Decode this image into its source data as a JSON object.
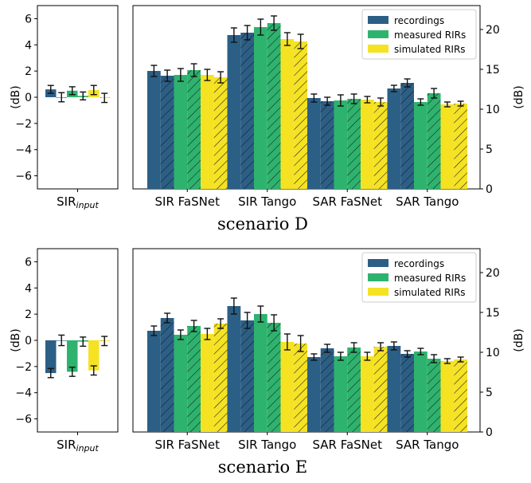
{
  "colors": {
    "recordings": "#2c5f86",
    "measured_rirs": "#2eb36e",
    "simulated_rirs": "#f5e223",
    "error_bar": "#111111",
    "hatch": "#1a1a1a"
  },
  "chart_data": [
    {
      "type": "bar",
      "caption": "scenario D",
      "legend": [
        "recordings",
        "measured RIRs",
        "simulated RIRs"
      ],
      "legend_position": "top-right",
      "hatched_bars": "second bar of each color pair is hatched",
      "left_panel": {
        "ylabel": "(dB)",
        "ylim": [
          -7,
          7
        ],
        "yticks": [
          "6",
          "4",
          "2",
          "0",
          "−2",
          "−4",
          "−6"
        ],
        "category_main": "SIR",
        "category_sub": "input",
        "series": [
          {
            "name": "recordings",
            "values": [
              0.6,
              0.0
            ],
            "errors": [
              0.3,
              0.35
            ]
          },
          {
            "name": "measured RIRs",
            "values": [
              0.5,
              0.1
            ],
            "errors": [
              0.3,
              0.3
            ]
          },
          {
            "name": "simulated RIRs",
            "values": [
              0.55,
              -0.05
            ],
            "errors": [
              0.35,
              0.35
            ]
          }
        ]
      },
      "right_panel": {
        "ylabel": "(dB)",
        "ylim": [
          0,
          23
        ],
        "yticks": [
          "20",
          "15",
          "10",
          "5",
          "0"
        ],
        "categories": [
          "SIR FaSNet",
          "SIR Tango",
          "SAR FaSNet",
          "SAR Tango"
        ],
        "series": [
          {
            "name": "recordings",
            "values": [
              [
                14.8,
                14.2
              ],
              [
                19.3,
                19.6
              ],
              [
                11.4,
                11.0
              ],
              [
                12.6,
                13.3
              ]
            ],
            "errors": [
              [
                0.7,
                0.7
              ],
              [
                0.9,
                0.9
              ],
              [
                0.5,
                0.5
              ],
              [
                0.4,
                0.5
              ]
            ]
          },
          {
            "name": "measured RIRs",
            "values": [
              [
                14.3,
                14.9
              ],
              [
                20.3,
                20.8
              ],
              [
                11.1,
                11.3
              ],
              [
                10.9,
                12.0
              ]
            ],
            "errors": [
              [
                0.8,
                0.8
              ],
              [
                1.0,
                0.9
              ],
              [
                0.7,
                0.6
              ],
              [
                0.4,
                0.6
              ]
            ]
          },
          {
            "name": "simulated RIRs",
            "values": [
              [
                14.3,
                14.0
              ],
              [
                18.8,
                18.5
              ],
              [
                11.2,
                10.9
              ],
              [
                10.6,
                10.7
              ]
            ],
            "errors": [
              [
                0.7,
                0.7
              ],
              [
                0.8,
                0.9
              ],
              [
                0.4,
                0.5
              ],
              [
                0.3,
                0.3
              ]
            ]
          }
        ]
      }
    },
    {
      "type": "bar",
      "caption": "scenario E",
      "legend": [
        "recordings",
        "measured RIRs",
        "simulated RIRs"
      ],
      "legend_position": "top-right",
      "hatched_bars": "second bar of each color pair is hatched",
      "left_panel": {
        "ylabel": "(dB)",
        "ylim": [
          -7,
          7
        ],
        "yticks": [
          "6",
          "4",
          "2",
          "0",
          "−2",
          "−4",
          "−6"
        ],
        "category_main": "SIR",
        "category_sub": "input",
        "series": [
          {
            "name": "recordings",
            "values": [
              -2.5,
              0.0
            ],
            "errors": [
              0.35,
              0.4
            ]
          },
          {
            "name": "measured RIRs",
            "values": [
              -2.4,
              -0.1
            ],
            "errors": [
              0.35,
              0.35
            ]
          },
          {
            "name": "simulated RIRs",
            "values": [
              -2.3,
              -0.05
            ],
            "errors": [
              0.35,
              0.35
            ]
          }
        ]
      },
      "right_panel": {
        "ylabel": "(dB)",
        "ylim": [
          0,
          23
        ],
        "yticks": [
          "20",
          "15",
          "10",
          "5",
          "0"
        ],
        "categories": [
          "SIR FaSNet",
          "SIR Tango",
          "SAR FaSNet",
          "SAR Tango"
        ],
        "series": [
          {
            "name": "recordings",
            "values": [
              [
                12.7,
                14.3
              ],
              [
                15.8,
                14.0
              ],
              [
                9.4,
                10.5
              ],
              [
                10.8,
                9.8
              ]
            ],
            "errors": [
              [
                0.6,
                0.6
              ],
              [
                1.0,
                1.0
              ],
              [
                0.4,
                0.5
              ],
              [
                0.5,
                0.4
              ]
            ]
          },
          {
            "name": "measured RIRs",
            "values": [
              [
                12.2,
                13.3
              ],
              [
                14.8,
                13.7
              ],
              [
                9.5,
                10.6
              ],
              [
                10.1,
                9.2
              ]
            ],
            "errors": [
              [
                0.6,
                0.7
              ],
              [
                1.0,
                1.0
              ],
              [
                0.5,
                0.6
              ],
              [
                0.4,
                0.5
              ]
            ]
          },
          {
            "name": "simulated RIRs",
            "values": [
              [
                12.3,
                13.6
              ],
              [
                11.3,
                11.1
              ],
              [
                9.5,
                10.7
              ],
              [
                8.9,
                9.1
              ]
            ],
            "errors": [
              [
                0.7,
                0.6
              ],
              [
                1.0,
                1.0
              ],
              [
                0.5,
                0.5
              ],
              [
                0.3,
                0.3
              ]
            ]
          }
        ]
      }
    }
  ]
}
